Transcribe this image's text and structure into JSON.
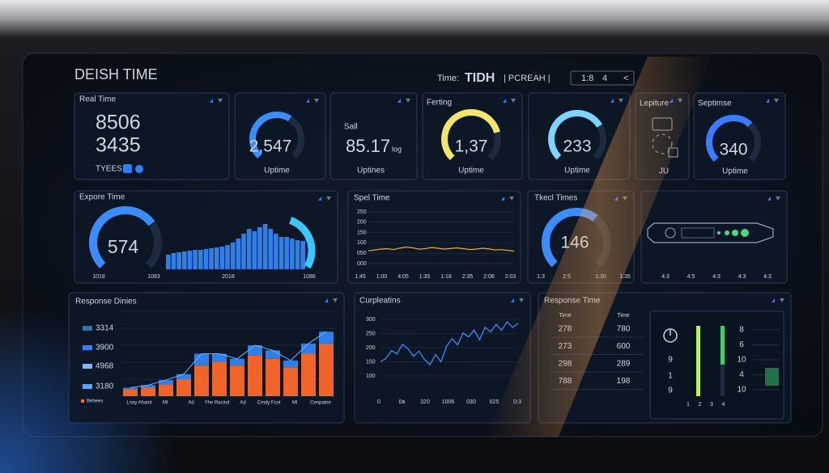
{
  "header": {
    "title": "DEISH TIME",
    "time_label": "Time:",
    "time_value": "TIDH",
    "mode": "| PCREAH |",
    "controls": [
      "1:8",
      "4",
      "<"
    ]
  },
  "top": {
    "real": {
      "title": "Real Time",
      "values": [
        "8506",
        "3435"
      ],
      "footer": "TYEES"
    },
    "g1": {
      "value": "2,547",
      "percent": 62,
      "color": "#3a8cff",
      "label": "Uptime"
    },
    "sall": {
      "title": "Sall",
      "value": "85.17",
      "unit": "log",
      "label": "Uptines"
    },
    "ferting": {
      "title": "Ferting",
      "value": "1,37",
      "percent": 78,
      "color": "#f2e66a",
      "label": "Uptime"
    },
    "g2": {
      "value": "233",
      "percent": 72,
      "color": "#7fd4ff",
      "label": "Uptime"
    },
    "lepiture": {
      "title": "Lepiture",
      "label": "JU"
    },
    "septimse": {
      "title": "Septimse",
      "value": "340",
      "percent": 66,
      "color": "#3a7cff",
      "label": "Uptime"
    }
  },
  "middle": {
    "expore": {
      "title": "Expore Time",
      "value": "574",
      "percent": 70,
      "color": "#3a8cff",
      "bars": [
        18,
        20,
        21,
        22,
        23,
        24,
        24,
        25,
        26,
        27,
        28,
        30,
        33,
        38,
        44,
        50,
        47,
        52,
        56,
        50,
        44,
        40,
        40,
        38,
        36,
        35
      ],
      "x_labels": [
        "1018",
        "1083",
        "2018",
        "1086"
      ]
    },
    "spel": {
      "title": "Spel Time",
      "yticks": [
        {
          "value": 0,
          "label": "000"
        },
        {
          "value": 50,
          "label": "050"
        },
        {
          "value": 100,
          "label": "100"
        },
        {
          "value": 150,
          "label": "150"
        },
        {
          "value": 200,
          "label": "200"
        },
        {
          "value": 250,
          "label": "250"
        }
      ],
      "ylim": [
        0,
        250
      ],
      "values": [
        62,
        66,
        70,
        72,
        68,
        75,
        80,
        76,
        70,
        72,
        78,
        74,
        70,
        73,
        76,
        72,
        68,
        70,
        74,
        71,
        66,
        68,
        64,
        60
      ],
      "x_labels": [
        "1:45",
        "1:00",
        "4:05",
        "1:35",
        "1:18",
        "2:35",
        "2:08",
        "2:03"
      ]
    },
    "tkecl": {
      "title": "Tkecl Times",
      "value": "146",
      "percent": 64,
      "color": "#3a8cff",
      "x_labels": [
        "1:3",
        "2:5",
        "1:30",
        "1:35"
      ]
    },
    "device": {
      "x_labels": [
        "4:3",
        "4:5",
        "4:3",
        "4:3",
        "4:3"
      ]
    }
  },
  "bottom": {
    "response": {
      "title": "Response Dinies",
      "legend": [
        {
          "label": "3314",
          "color": "#3a6ea8"
        },
        {
          "label": "3900",
          "color": "#2f80ff"
        },
        {
          "label": "4968",
          "color": "#7ab8ff"
        },
        {
          "label": "3180",
          "color": "#4aa8ff"
        }
      ],
      "note": "Behees",
      "ylim": [
        0,
        100
      ],
      "orange": [
        8,
        10,
        14,
        20,
        36,
        40,
        36,
        48,
        44,
        34,
        50,
        62
      ],
      "blue": [
        2,
        3,
        5,
        6,
        14,
        10,
        8,
        12,
        10,
        8,
        12,
        14
      ],
      "x_labels": [
        "Lnay Ahaint",
        "Ml",
        "Ad",
        "Yhe Racind",
        "Ad",
        "Cmdy Fcot",
        "Ml",
        "Cenpaine"
      ]
    },
    "curpleatins": {
      "title": "Curpleatins",
      "yticks": [
        100,
        150,
        200,
        250,
        300
      ],
      "ylim": [
        100,
        300
      ],
      "values": [
        150,
        162,
        190,
        178,
        212,
        196,
        170,
        188,
        158,
        140,
        176,
        150,
        205,
        232,
        210,
        252,
        238,
        262,
        228,
        272,
        256,
        282,
        262,
        292,
        272,
        286
      ],
      "x_labels": [
        "0",
        "0a",
        "320",
        "1006",
        "030",
        "025",
        "0:3"
      ]
    },
    "table": {
      "title": "Response Time",
      "headers": [
        "Time",
        "Time"
      ],
      "rows": [
        [
          "278",
          "780"
        ],
        [
          "273",
          "600"
        ],
        [
          "298",
          "289"
        ],
        [
          "788",
          "198"
        ]
      ]
    },
    "sliders": {
      "left": [
        "9",
        "1",
        "9"
      ],
      "right": [
        "8",
        "6",
        "10",
        "4",
        "10"
      ],
      "x_labels": [
        "1",
        "2",
        "3",
        "4"
      ],
      "levels": [
        100,
        55
      ]
    }
  }
}
